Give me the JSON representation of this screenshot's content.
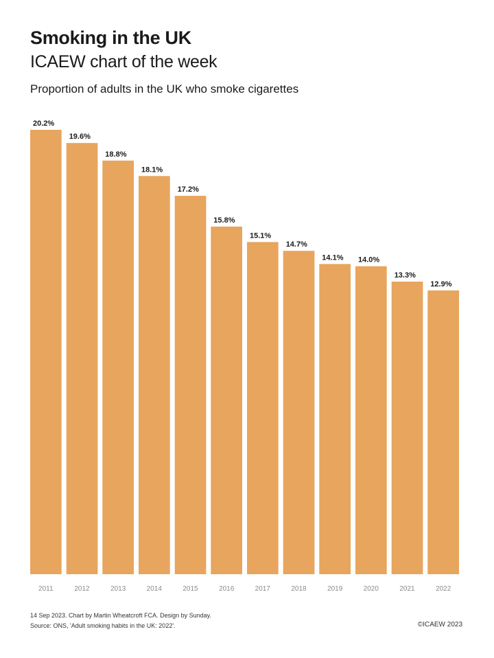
{
  "header": {
    "title": "Smoking in the UK",
    "subtitle": "ICAEW chart of the week",
    "caption": "Proportion of adults in the UK who smoke cigarettes"
  },
  "chart_data": {
    "type": "bar",
    "categories": [
      "2011",
      "2012",
      "2013",
      "2014",
      "2015",
      "2016",
      "2017",
      "2018",
      "2019",
      "2020",
      "2021",
      "2022"
    ],
    "values": [
      20.2,
      19.6,
      18.8,
      18.1,
      17.2,
      15.8,
      15.1,
      14.7,
      14.1,
      14.0,
      13.3,
      12.9
    ],
    "value_labels": [
      "20.2%",
      "19.6%",
      "18.8%",
      "18.1%",
      "17.2%",
      "15.8%",
      "15.1%",
      "14.7%",
      "14.1%",
      "14.0%",
      "13.3%",
      "12.9%"
    ],
    "ylim": [
      0,
      20.2
    ],
    "grid": false,
    "bar_color": "#e8a55e"
  },
  "footer": {
    "line1": "14 Sep 2023.   Chart by Martin Wheatcroft FCA. Design by Sunday.",
    "line2": "Source: ONS, 'Adult smoking habits in the UK: 2022'.",
    "copyright": "©ICAEW 2023"
  }
}
